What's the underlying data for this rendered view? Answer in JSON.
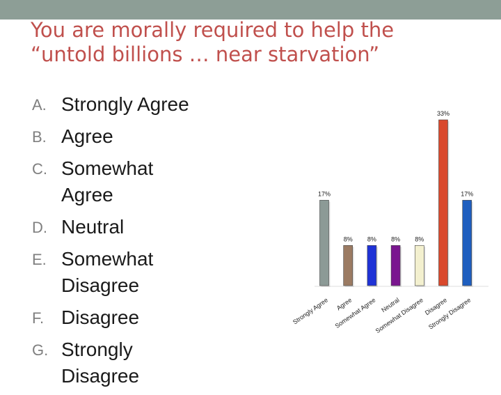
{
  "slide": {
    "title_line1": "You are morally required to help the",
    "title_line2": "“untold billions … near starvation”"
  },
  "options": [
    {
      "letter": "A.",
      "text": "Strongly Agree"
    },
    {
      "letter": "B.",
      "text": "Agree"
    },
    {
      "letter": "C.",
      "text": "Somewhat Agree"
    },
    {
      "letter": "D.",
      "text": "Neutral"
    },
    {
      "letter": "E.",
      "text": "Somewhat Disagree"
    },
    {
      "letter": "F.",
      "text": "Disagree"
    },
    {
      "letter": "G.",
      "text": "Strongly Disagree"
    }
  ],
  "colors": {
    "title": "#c0504d",
    "topbar": "#8d9e96"
  },
  "chart_data": {
    "type": "bar",
    "categories": [
      "Strongly Agree",
      "Agree",
      "Somewhat Agree",
      "Neutral",
      "Somewhat Disagree",
      "Disagree",
      "Strongly Disagree"
    ],
    "values": [
      17,
      8,
      8,
      8,
      8,
      33,
      17
    ],
    "value_labels": [
      "17%",
      "8%",
      "8%",
      "8%",
      "8%",
      "33%",
      "17%"
    ],
    "colors": [
      "#8c9a96",
      "#9b7b63",
      "#1f32d6",
      "#7a168f",
      "#f3f0cf",
      "#d9482c",
      "#1f5fbf"
    ],
    "title": "",
    "xlabel": "",
    "ylabel": "",
    "ylim": [
      0,
      33
    ],
    "grid": false,
    "legend": "none"
  }
}
